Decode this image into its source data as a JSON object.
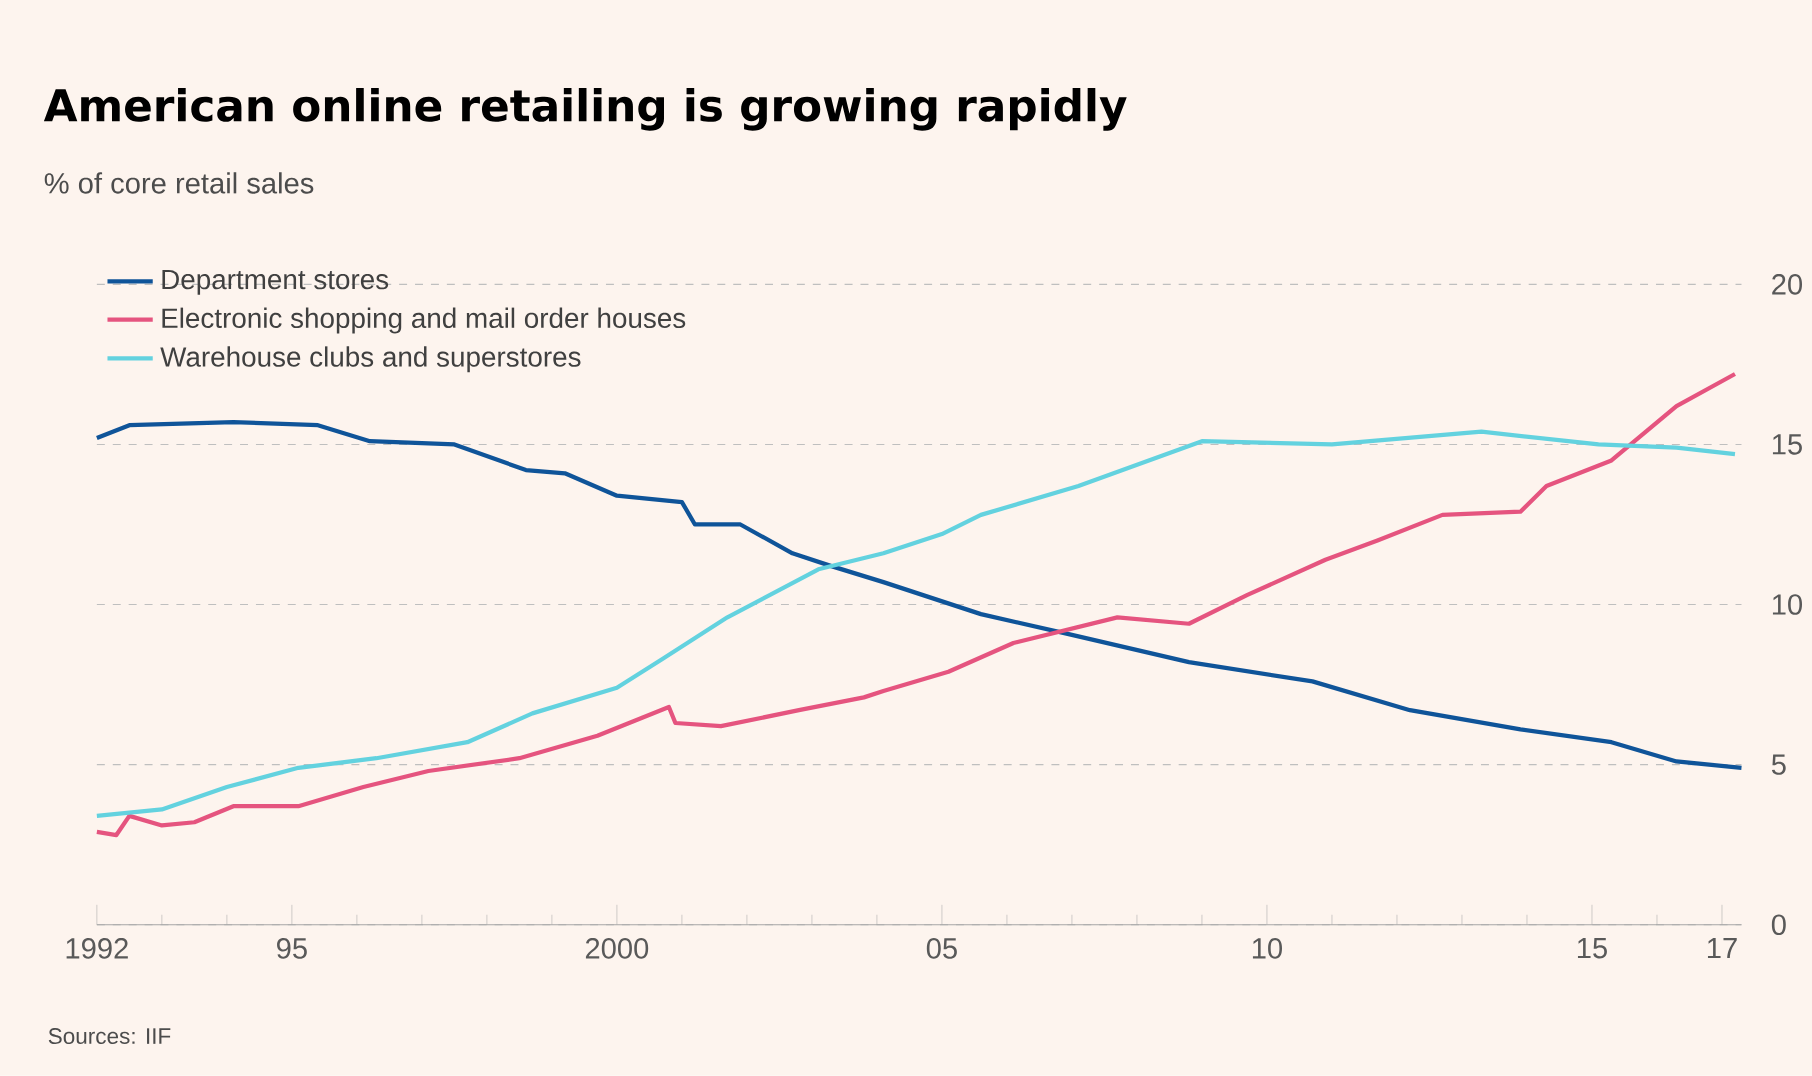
{
  "chart_data": {
    "type": "line",
    "title": "American online retailing is growing rapidly",
    "subtitle": "% of core retail sales",
    "annotations": [
      "Sources: IIF"
    ],
    "xlim": [
      1992,
      2017.3
    ],
    "xticks": [
      1992,
      {
        "value": 1993,
        "label": null
      },
      {
        "value": 1994,
        "label": null
      },
      {
        "value": 1995,
        "label": "95"
      },
      {
        "value": 1996,
        "label": null
      },
      {
        "value": 1997,
        "label": null
      },
      {
        "value": 1998,
        "label": null
      },
      {
        "value": 1999,
        "label": null
      },
      2000,
      {
        "value": 2001,
        "label": null
      },
      {
        "value": 2002,
        "label": null
      },
      {
        "value": 2003,
        "label": null
      },
      {
        "value": 2004,
        "label": null
      },
      {
        "value": 2005,
        "label": "05"
      },
      {
        "value": 2006,
        "label": null
      },
      {
        "value": 2007,
        "label": null
      },
      {
        "value": 2008,
        "label": null
      },
      {
        "value": 2009,
        "label": null
      },
      {
        "value": 2010,
        "label": "10"
      },
      {
        "value": 2011,
        "label": null
      },
      {
        "value": 2012,
        "label": null
      },
      {
        "value": 2013,
        "label": null
      },
      {
        "value": 2014,
        "label": null
      },
      {
        "value": 2015,
        "label": "15"
      },
      {
        "value": 2016,
        "label": null
      },
      {
        "value": 2017,
        "label": "17"
      }
    ],
    "ylim": [
      0,
      20
    ],
    "yticks": [
      0,
      5,
      10,
      15,
      20
    ],
    "grid": "y",
    "legend": "top left",
    "marker": "none",
    "line_style": "solid",
    "series": [
      {
        "name": "Department stores",
        "color": "#0f5499",
        "x": [
          1992,
          1992.5,
          1994.1,
          1995.4,
          1996.2,
          1997.5,
          1998.6,
          1999.2,
          2000,
          2001,
          2001.2,
          2001.9,
          2002.7,
          2003.3,
          2004.1,
          2005.6,
          2006.9,
          2008.8,
          2010.7,
          2012.2,
          2013.9,
          2015.3,
          2016.3,
          2017.3
        ],
        "values": [
          15.2,
          15.6,
          15.7,
          15.6,
          15.1,
          15.0,
          14.2,
          14.1,
          13.4,
          13.2,
          12.5,
          12.5,
          11.6,
          11.2,
          10.7,
          9.7,
          9.1,
          8.2,
          7.6,
          6.7,
          6.1,
          5.7,
          5.1,
          4.9
        ]
      },
      {
        "name": "Electronic shopping and mail order houses",
        "color": "#e5547f",
        "x": [
          1992,
          1992.3,
          1992.5,
          1993,
          1993.5,
          1994.1,
          1995.1,
          1996.1,
          1997.1,
          1998.5,
          1999.7,
          2000.8,
          2000.9,
          2001.6,
          2002.8,
          2003.8,
          2004.1,
          2005.1,
          2006.1,
          2007.7,
          2008.8,
          2009.7,
          2010.9,
          2011.7,
          2012.7,
          2013.9,
          2014.3,
          2015.3,
          2016.3,
          2017.2
        ],
        "values": [
          2.9,
          2.8,
          3.4,
          3.1,
          3.2,
          3.7,
          3.7,
          4.3,
          4.8,
          5.2,
          5.9,
          6.8,
          6.3,
          6.2,
          6.7,
          7.1,
          7.3,
          7.9,
          8.8,
          9.6,
          9.4,
          10.3,
          11.4,
          12.0,
          12.8,
          12.9,
          13.7,
          14.5,
          16.2,
          17.2
        ]
      },
      {
        "name": "Warehouse clubs and superstores",
        "color": "#63d2df",
        "x": [
          1992,
          1993,
          1994,
          1995.1,
          1996.3,
          1997.7,
          1998.7,
          2000,
          2000.7,
          2001.7,
          2003.1,
          2004.1,
          2005,
          2005.6,
          2007.1,
          2009,
          2011,
          2013.3,
          2015.1,
          2016.3,
          2017.2
        ],
        "values": [
          3.4,
          3.6,
          4.3,
          4.9,
          5.2,
          5.7,
          6.6,
          7.4,
          8.3,
          9.6,
          11.1,
          11.6,
          12.2,
          12.8,
          13.7,
          15.1,
          15.0,
          15.4,
          15.0,
          14.9,
          14.7
        ]
      }
    ]
  }
}
